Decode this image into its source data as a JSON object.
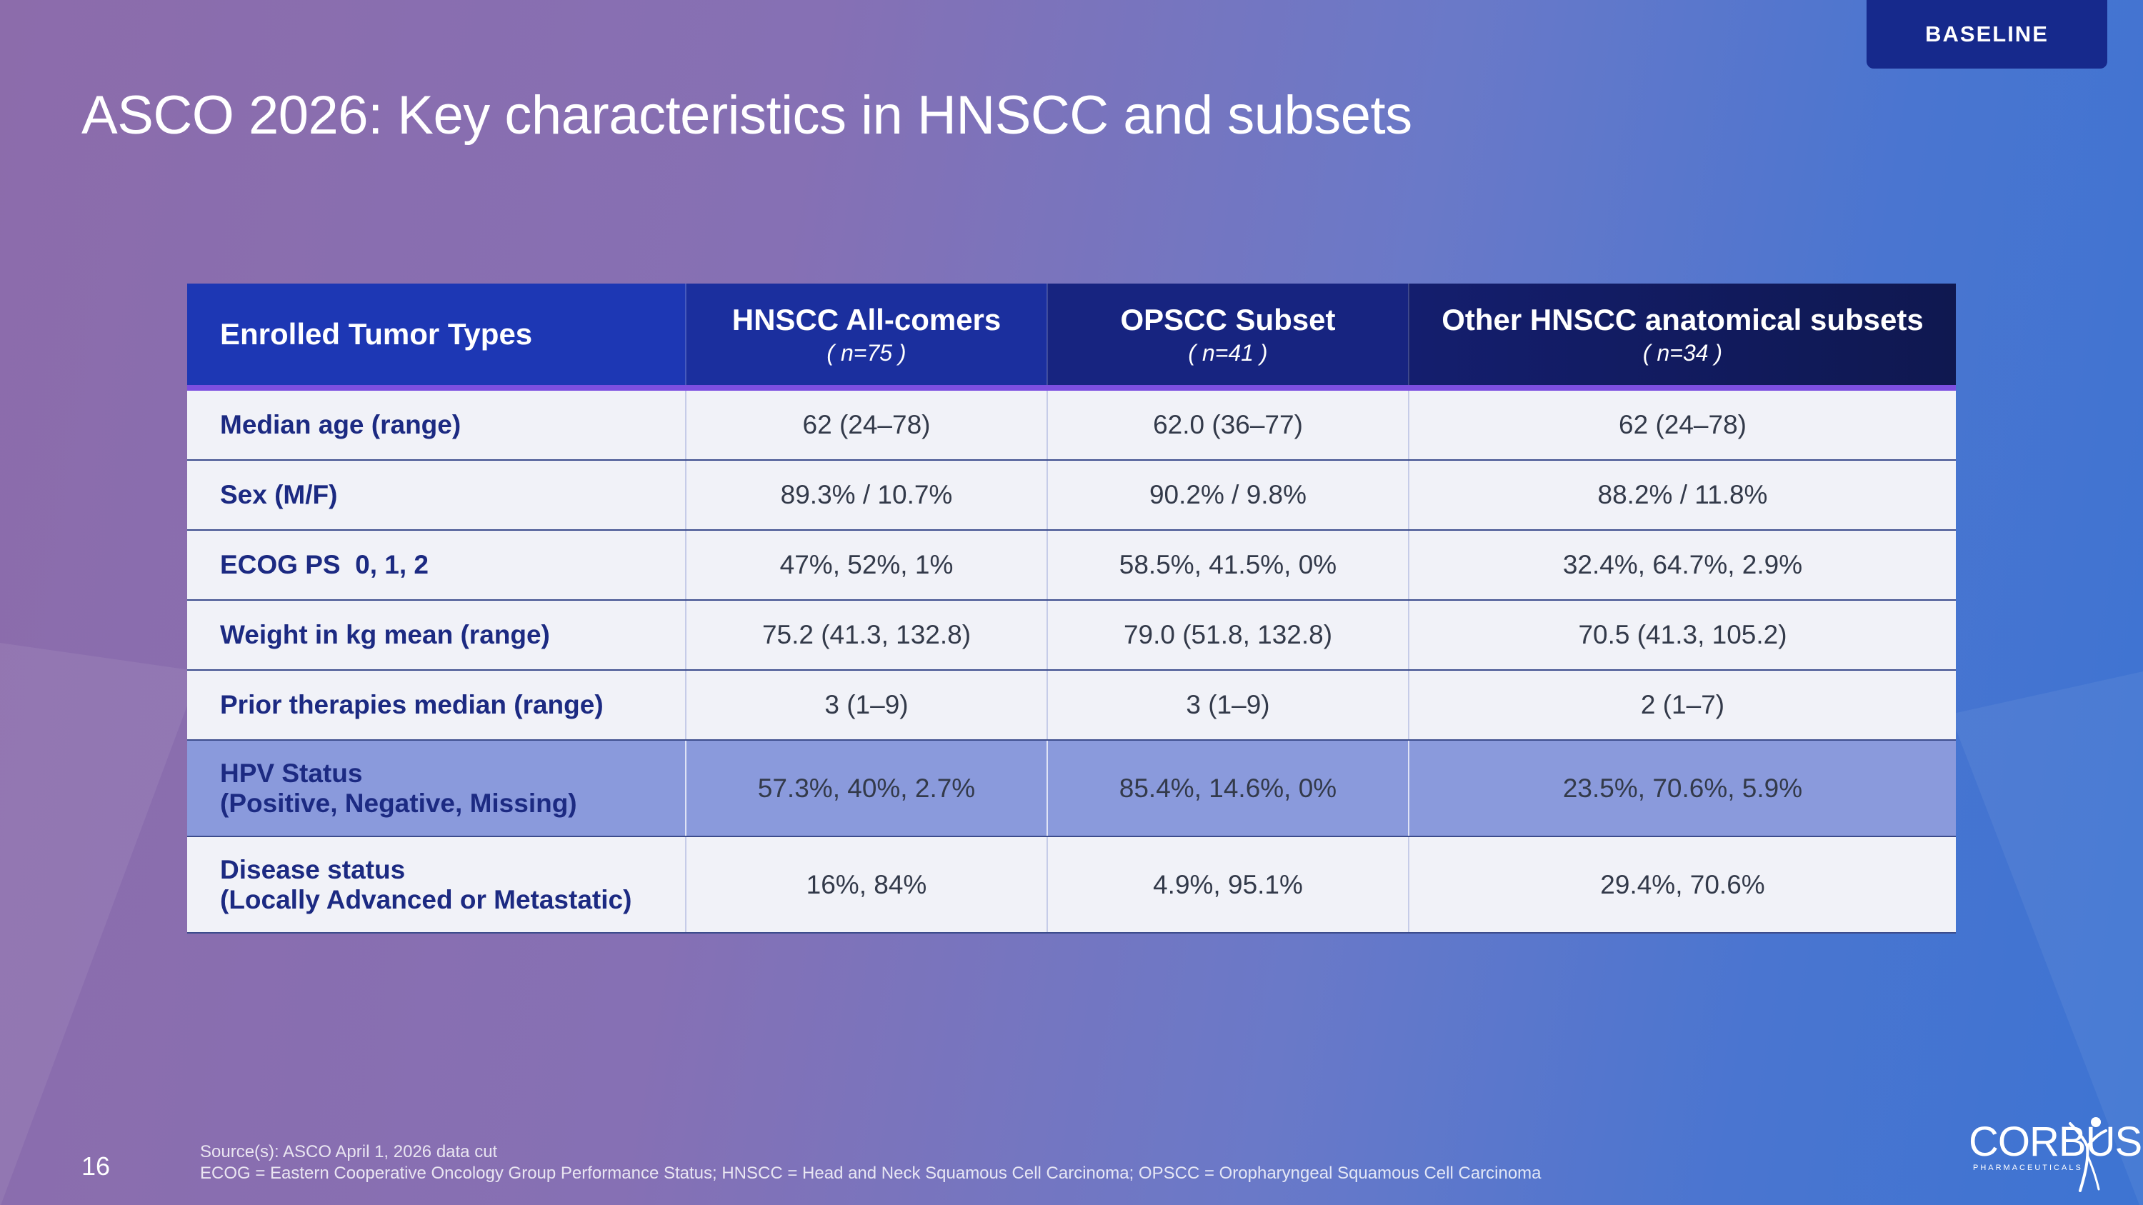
{
  "badge": "BASELINE",
  "title": "ASCO 2026: Key characteristics in HNSCC and subsets",
  "table": {
    "header": {
      "first": "Enrolled Tumor Types",
      "columns": [
        {
          "label": "HNSCC All-comers",
          "n": "( n=75 )"
        },
        {
          "label": "OPSCC Subset",
          "n": "( n=41 )"
        },
        {
          "label": "Other HNSCC anatomical subsets",
          "n": "( n=34 )"
        }
      ]
    },
    "rows": [
      {
        "label": "Median age (range)",
        "values": [
          "62 (24–78)",
          "62.0 (36–77)",
          "62 (24–78)"
        ]
      },
      {
        "label": "Sex (M/F)",
        "values": [
          "89.3% / 10.7%",
          "90.2% / 9.8%",
          "88.2% / 11.8%"
        ]
      },
      {
        "label": "ECOG PS  0, 1, 2",
        "values": [
          "47%, 52%, 1%",
          "58.5%, 41.5%, 0%",
          "32.4%, 64.7%, 2.9%"
        ]
      },
      {
        "label": "Weight in kg mean (range)",
        "values": [
          "75.2 (41.3, 132.8)",
          "79.0 (51.8, 132.8)",
          "70.5 (41.3, 105.2)"
        ]
      },
      {
        "label": "Prior therapies median (range)",
        "values": [
          "3 (1–9)",
          "3 (1–9)",
          "2 (1–7)"
        ]
      },
      {
        "label_line1": "HPV Status",
        "label_line2": "(Positive, Negative, Missing)",
        "values": [
          "57.3%, 40%, 2.7%",
          "85.4%, 14.6%, 0%",
          "23.5%, 70.6%, 5.9%"
        ]
      },
      {
        "label_line1": "Disease status",
        "label_line2": "(Locally Advanced or Metastatic)",
        "values": [
          "16%, 84%",
          "4.9%, 95.1%",
          "29.4%, 70.6%"
        ]
      }
    ]
  },
  "page_number": "16",
  "footer": {
    "source": "Source(s): ASCO April 1, 2026 data cut",
    "abbreviations": "ECOG = Eastern Cooperative Oncology Group Performance Status; HNSCC = Head and Neck Squamous Cell Carcinoma; OPSCC = Oropharyngeal Squamous Cell Carcinoma"
  },
  "logo": {
    "name": "CORBUS",
    "tagline": "PHARMACEUTICALS",
    "icon": "running-figure-icon"
  },
  "colors": {
    "header_start": "#1d38b6",
    "header_end": "#0f1a52",
    "header_rule": "#7d4fe0",
    "highlight_row": "#8a9adc",
    "label_text": "#1c2a82",
    "badge": "#16298c"
  }
}
